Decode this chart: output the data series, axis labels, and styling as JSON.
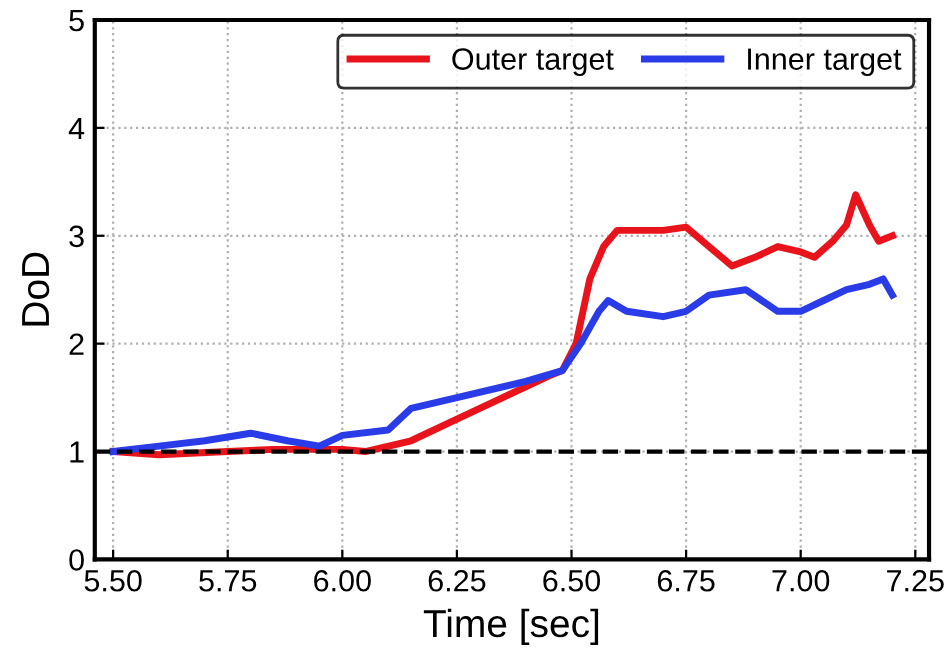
{
  "chart_data": {
    "type": "line",
    "xlabel": "Time [sec]",
    "ylabel": "DoD",
    "xlim": [
      5.46,
      7.28
    ],
    "ylim": [
      0,
      5
    ],
    "xticks": [
      {
        "value": 5.5,
        "label": "5.50"
      },
      {
        "value": 5.75,
        "label": "5.75"
      },
      {
        "value": 6.0,
        "label": "6.00"
      },
      {
        "value": 6.25,
        "label": "6.25"
      },
      {
        "value": 6.5,
        "label": "6.50"
      },
      {
        "value": 6.75,
        "label": "6.75"
      },
      {
        "value": 7.0,
        "label": "7.00"
      },
      {
        "value": 7.25,
        "label": "7.25"
      }
    ],
    "yticks": [
      0,
      1,
      2,
      3,
      4,
      5
    ],
    "grid": true,
    "legend": "top right",
    "line_style": "solid",
    "series": [
      {
        "name": "Outer target",
        "color": "#e8131b",
        "x": [
          5.5,
          5.6,
          5.75,
          5.85,
          6.0,
          6.05,
          6.15,
          6.25,
          6.35,
          6.45,
          6.48,
          6.51,
          6.54,
          6.57,
          6.6,
          6.7,
          6.75,
          6.8,
          6.85,
          6.9,
          6.95,
          7.0,
          7.03,
          7.07,
          7.1,
          7.12,
          7.15,
          7.17,
          7.2
        ],
        "values": [
          1.0,
          0.97,
          1.0,
          1.02,
          1.02,
          1.0,
          1.1,
          1.3,
          1.5,
          1.7,
          1.75,
          2.0,
          2.6,
          2.9,
          3.05,
          3.05,
          3.08,
          2.9,
          2.72,
          2.8,
          2.9,
          2.85,
          2.8,
          2.95,
          3.1,
          3.38,
          3.1,
          2.95,
          3.0
        ]
      },
      {
        "name": "Inner target",
        "color": "#2a3be8",
        "x": [
          5.5,
          5.6,
          5.7,
          5.8,
          5.88,
          5.95,
          6.0,
          6.1,
          6.15,
          6.25,
          6.4,
          6.48,
          6.52,
          6.56,
          6.58,
          6.62,
          6.7,
          6.75,
          6.8,
          6.88,
          6.95,
          7.0,
          7.05,
          7.1,
          7.15,
          7.18,
          7.2
        ],
        "values": [
          1.0,
          1.05,
          1.1,
          1.17,
          1.1,
          1.05,
          1.15,
          1.2,
          1.4,
          1.5,
          1.65,
          1.75,
          2.0,
          2.3,
          2.4,
          2.3,
          2.25,
          2.3,
          2.45,
          2.5,
          2.3,
          2.3,
          2.4,
          2.5,
          2.55,
          2.6,
          2.45
        ]
      }
    ],
    "ref_lines": [
      {
        "axis": "y",
        "value": 1,
        "color": "#000000",
        "line_style": "dashed"
      }
    ]
  }
}
